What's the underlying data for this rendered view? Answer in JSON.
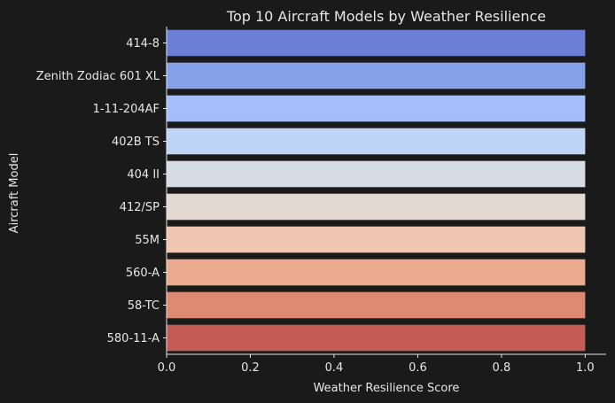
{
  "chart_data": {
    "type": "bar",
    "orientation": "horizontal",
    "title": "Top 10 Aircraft Models by Weather Resilience",
    "xlabel": "Weather Resilience Score",
    "ylabel": "Aircraft Model",
    "xlim": [
      0,
      1.05
    ],
    "xticks": [
      "0.0",
      "0.2",
      "0.4",
      "0.6",
      "0.8",
      "1.0"
    ],
    "grid": false,
    "categories": [
      "414-8",
      "Zenith Zodiac 601 XL",
      "1-11-204AF",
      "402B TS",
      "404 II",
      "412/SP",
      "55M",
      "560-A",
      "58-TC",
      "580-11-A"
    ],
    "values": [
      1.0,
      1.0,
      1.0,
      1.0,
      1.0,
      1.0,
      1.0,
      1.0,
      1.0,
      1.0
    ],
    "colors": [
      "#6b7fd7",
      "#84a0e9",
      "#a3befa",
      "#c0d4f5",
      "#d6dce5",
      "#e4d9d2",
      "#f0c6b0",
      "#eaaa8d",
      "#de8a73",
      "#c45c55"
    ]
  },
  "colors": {
    "background": "#1a1a1a",
    "text": "#e6e6e6",
    "axis": "#e6e6e6"
  }
}
